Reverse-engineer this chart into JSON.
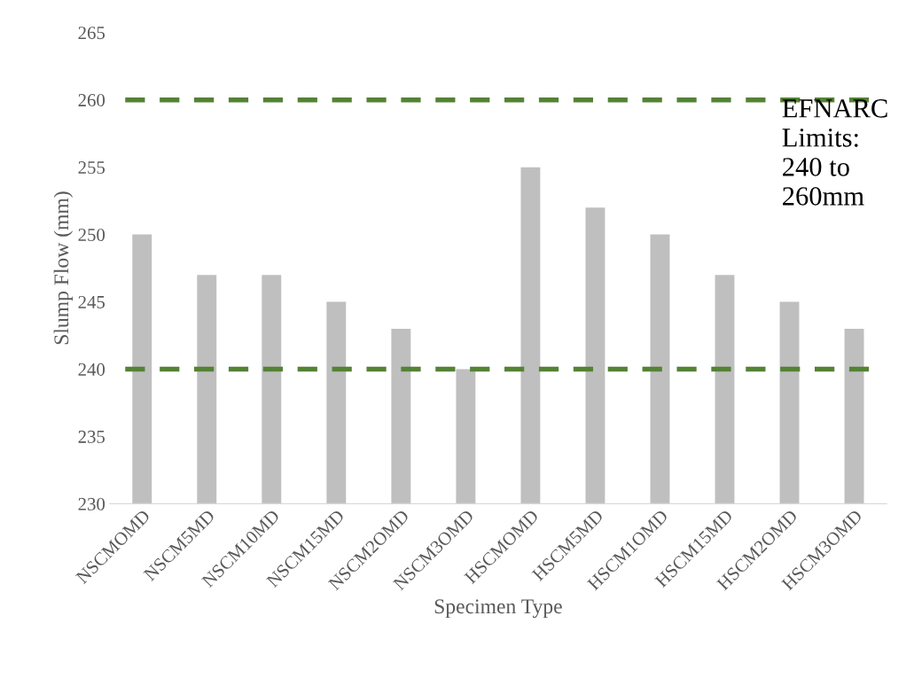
{
  "chart_data": {
    "type": "bar",
    "xlabel": "Specimen Type",
    "ylabel": "Slump Flow (mm)",
    "categories": [
      "NSCMOMD",
      "NSCM5MD",
      "NSCM10MD",
      "NSCM15MD",
      "NSCM2OMD",
      "NSCM3OMD",
      "HSCMOMD",
      "HSCM5MD",
      "HSCM1OMD",
      "HSCM15MD",
      "HSCM2OMD",
      "HSCM3OMD"
    ],
    "values": [
      250,
      247,
      247,
      245,
      243,
      240,
      255,
      252,
      250,
      247,
      245,
      243
    ],
    "color": "#bfbfbf",
    "ylim": [
      230,
      265
    ],
    "yticks": [
      230,
      235,
      240,
      245,
      250,
      255,
      260,
      265
    ],
    "grid": false,
    "legend": false,
    "ref_lines": [
      {
        "axis": "y",
        "value": 260,
        "color": "#548235",
        "line_style": "dashed"
      },
      {
        "axis": "y",
        "value": 240,
        "color": "#548235",
        "line_style": "dashed"
      }
    ],
    "annotations": [
      "EFNARC\nLimits:\n240 to\n260mm"
    ]
  }
}
